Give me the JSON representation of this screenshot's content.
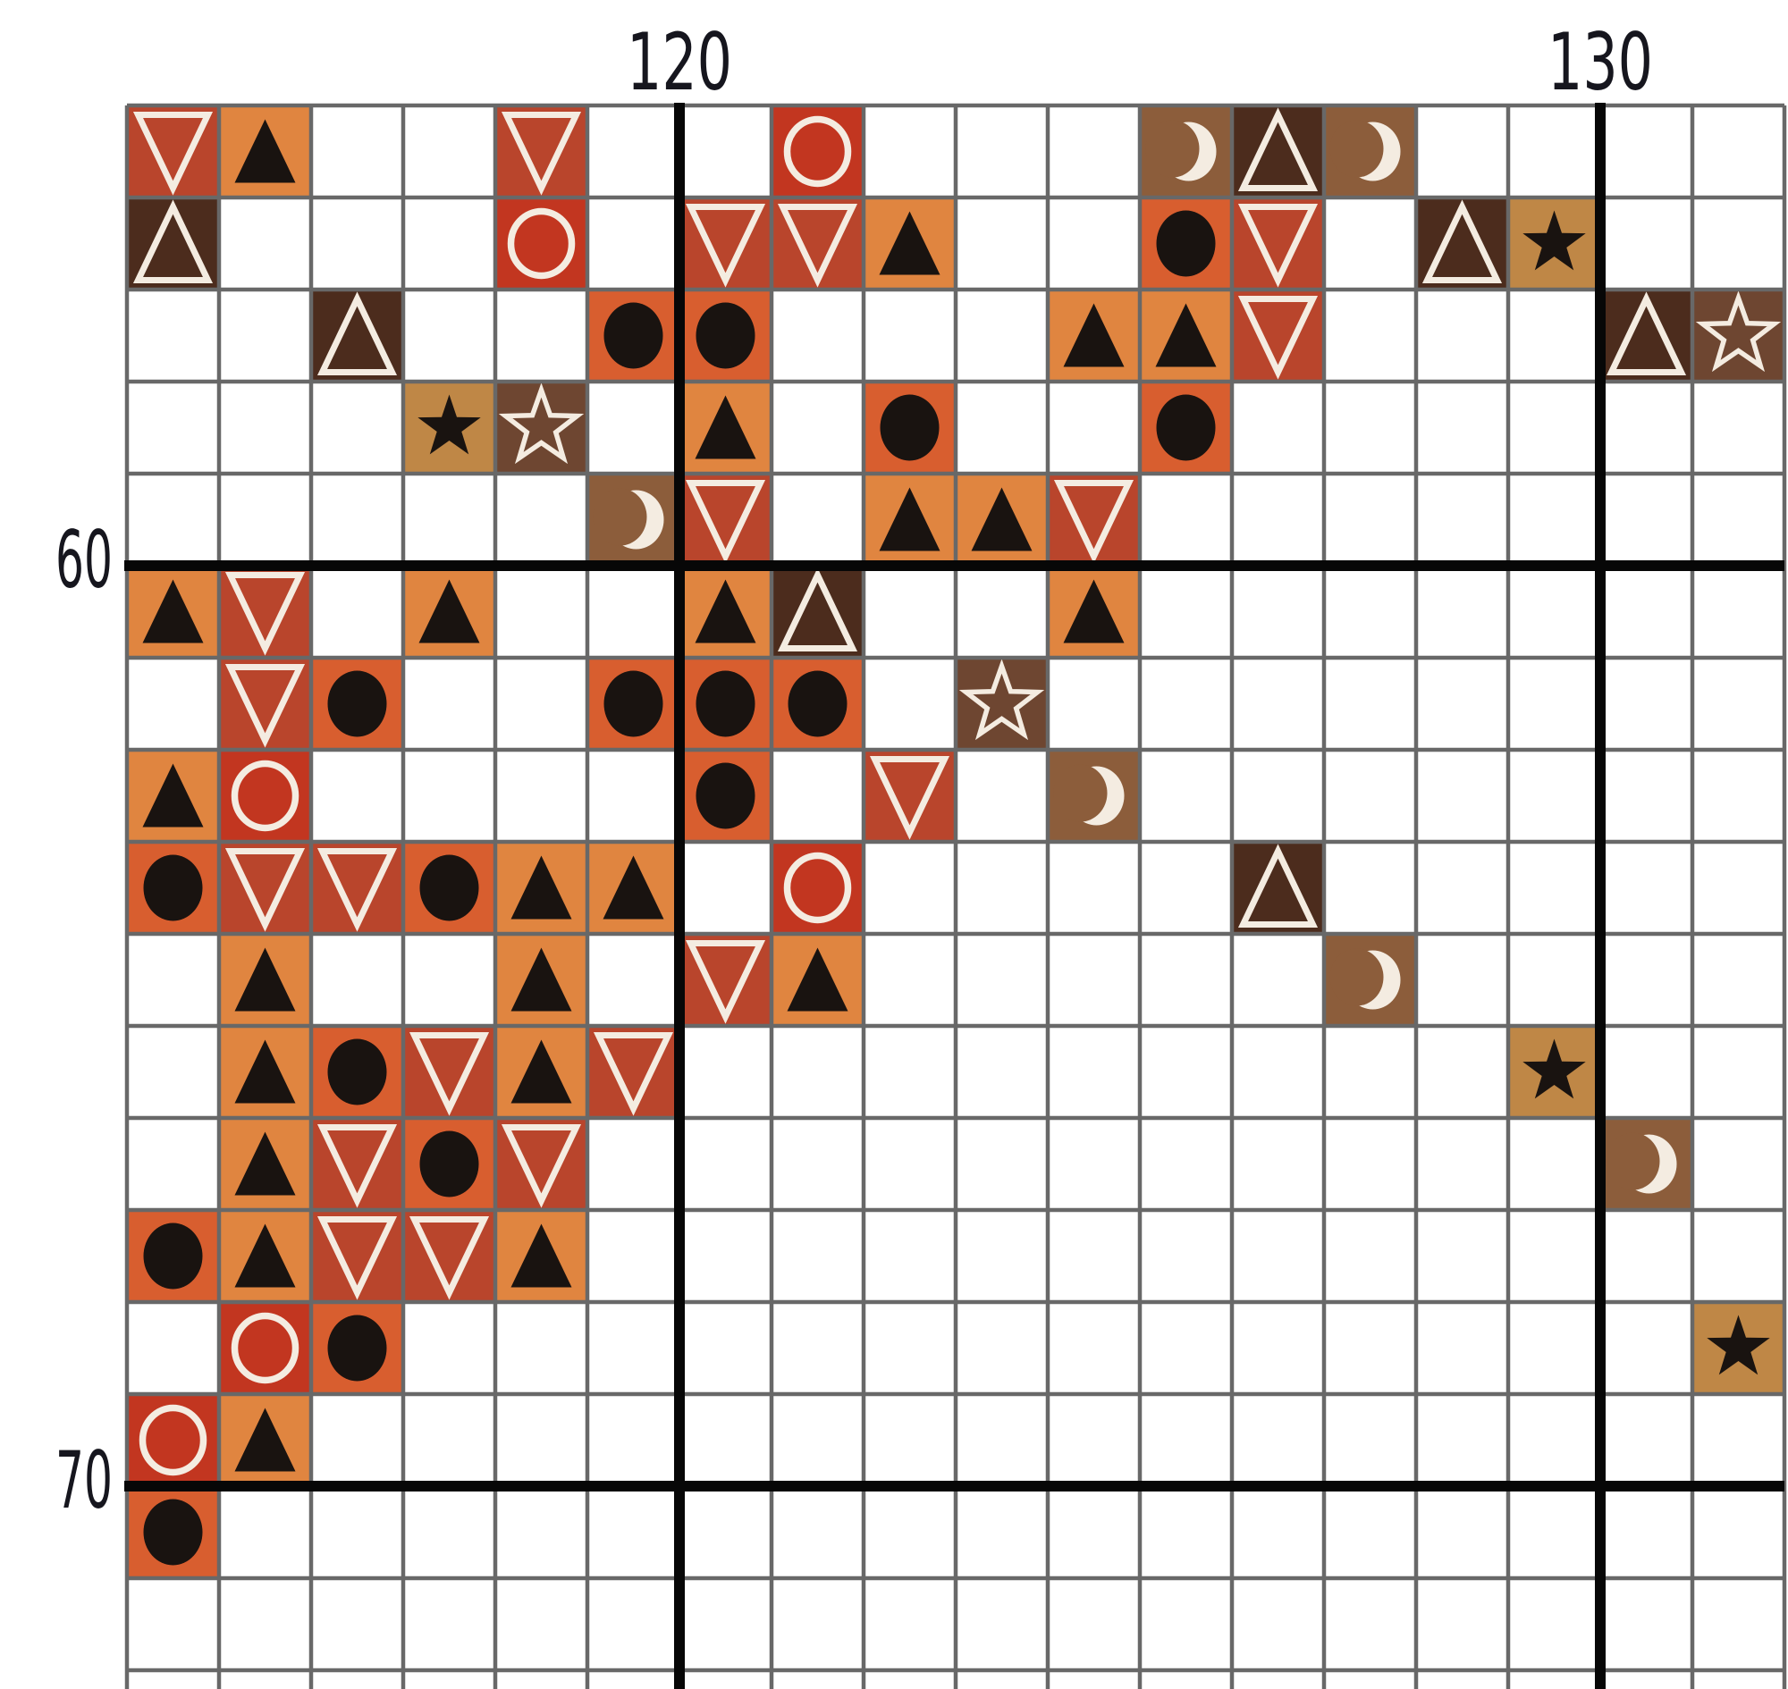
{
  "page": {
    "background_color": "#FFFFFF"
  },
  "chart_data": {
    "type": "heatmap",
    "chart_kind": "cross-stitch-pattern-grid",
    "title": "",
    "xlabel": "",
    "ylabel": "",
    "x_axis": {
      "tick_labels": [
        "120",
        "130"
      ],
      "tick_col_boundaries": [
        6,
        16
      ],
      "first_visible_column_coord": 115
    },
    "y_axis": {
      "tick_labels": [
        "60",
        "70"
      ],
      "tick_row_boundaries": [
        5,
        15
      ],
      "first_visible_row_coord": 56
    },
    "grid": {
      "columns": 18,
      "rows": 17,
      "bold_line_every": 10,
      "empty_cell_color": "#FFFFFF",
      "thin_line_color": "#686868",
      "bold_line_color": "#070707",
      "tick_label_color": "#16161E"
    },
    "legend": {
      "T": {
        "name": "solid-triangle-up",
        "bg": "#E08540",
        "glyph": "#191310",
        "form": "filled-triangle-up"
      },
      "V": {
        "name": "outline-triangle-down",
        "bg": "#B9452C",
        "glyph": "#F4ECE1",
        "form": "outline-triangle-down"
      },
      "U": {
        "name": "outline-triangle-up",
        "bg": "#4C2C1D",
        "glyph": "#F4ECE1",
        "form": "outline-triangle-up"
      },
      "B": {
        "name": "solid-circle",
        "bg": "#D85E2F",
        "glyph": "#191310",
        "form": "filled-circle"
      },
      "O": {
        "name": "outline-circle",
        "bg": "#C23620",
        "glyph": "#F4ECE1",
        "form": "outline-circle"
      },
      "S": {
        "name": "solid-star",
        "bg": "#BF8746",
        "glyph": "#191310",
        "form": "filled-star"
      },
      "E": {
        "name": "outline-star",
        "bg": "#6E4631",
        "glyph": "#F4ECE1",
        "form": "outline-star"
      },
      "M": {
        "name": "crescent-moon",
        "bg": "#8C5D3B",
        "glyph": "#F4ECE1",
        "form": "crescent"
      }
    },
    "rows": [
      "VT..V..O...MUM....",
      "U...O.VVT..BV.US..",
      "..U..BB...TTV...UE",
      "...SE.T.B..B......",
      ".....MV.TTV.......",
      "TV.T..TU..T.......",
      ".VB..BBB.E........",
      "TO....B.V.M.......",
      "BVVBTT.O....U.....",
      ".T..T.VT.....M....",
      ".TBVTV.........S..",
      ".TVBV...........M.",
      "BTVVT.............",
      ".OB..............S",
      "OT................",
      "B.................",
      ".................."
    ]
  }
}
